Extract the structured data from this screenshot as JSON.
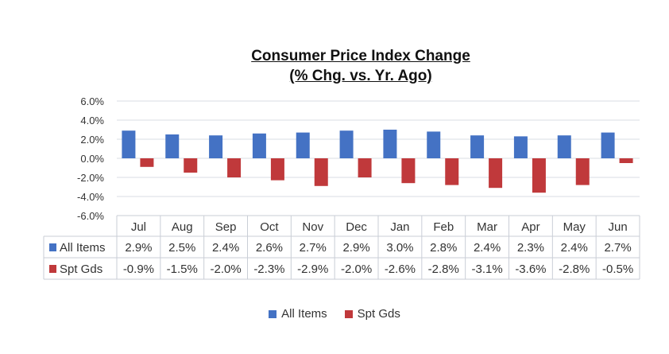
{
  "chart_data": {
    "type": "bar",
    "title": [
      "Consumer Price Index Change",
      "(% Chg. vs. Yr. Ago)"
    ],
    "categories": [
      "Jul",
      "Aug",
      "Sep",
      "Oct",
      "Nov",
      "Dec",
      "Jan",
      "Feb",
      "Mar",
      "Apr",
      "May",
      "Jun"
    ],
    "series": [
      {
        "name": "All Items",
        "color": "#4472c4",
        "values": [
          2.9,
          2.5,
          2.4,
          2.6,
          2.7,
          2.9,
          3.0,
          2.8,
          2.4,
          2.3,
          2.4,
          2.7
        ],
        "labels": [
          "2.9%",
          "2.5%",
          "2.4%",
          "2.6%",
          "2.7%",
          "2.9%",
          "3.0%",
          "2.8%",
          "2.4%",
          "2.3%",
          "2.4%",
          "2.7%"
        ]
      },
      {
        "name": "Spt Gds",
        "color": "#c0393b",
        "values": [
          -0.9,
          -1.5,
          -2.0,
          -2.3,
          -2.9,
          -2.0,
          -2.6,
          -2.8,
          -3.1,
          -3.6,
          -2.8,
          -0.5
        ],
        "labels": [
          "-0.9%",
          "-1.5%",
          "-2.0%",
          "-2.3%",
          "-2.9%",
          "-2.0%",
          "-2.6%",
          "-2.8%",
          "-3.1%",
          "-3.6%",
          "-2.8%",
          "-0.5%"
        ]
      }
    ],
    "ylim": [
      -6.0,
      6.0
    ],
    "yticks": [
      "-6.0%",
      "-4.0%",
      "-2.0%",
      "0.0%",
      "2.0%",
      "4.0%",
      "6.0%"
    ],
    "grid": true,
    "data_table": true,
    "legend_position": "bottom"
  }
}
